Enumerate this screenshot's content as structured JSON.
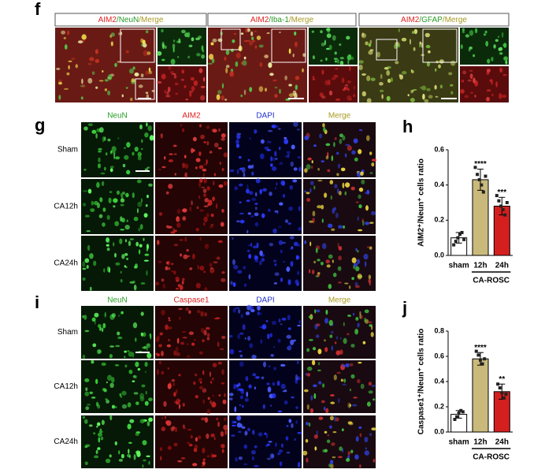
{
  "figure": {
    "f": {
      "label": "f",
      "panels": [
        {
          "parts": [
            "AIM2",
            "/NeuN",
            "/Merge"
          ]
        },
        {
          "parts": [
            "AIM2",
            "/Iba-1",
            "/Merge"
          ]
        },
        {
          "parts": [
            "AIM2",
            "/GFAP",
            "/Merge"
          ]
        }
      ]
    },
    "g": {
      "label": "g",
      "columns": [
        "NeuN",
        "AIM2",
        "DAPI",
        "Merge"
      ],
      "rows": [
        "Sham",
        "CA12h",
        "CA24h"
      ]
    },
    "i": {
      "label": "i",
      "columns": [
        "NeuN",
        "Caspase1",
        "DAPI",
        "Merge"
      ],
      "rows": [
        "Sham",
        "CA12h",
        "CA24h"
      ]
    }
  },
  "chart_data": [
    {
      "type": "bar",
      "panel_label": "h",
      "ylabel": "AIM2⁺/Neun⁺ cells ratio",
      "categories": [
        "sham",
        "12h",
        "24h"
      ],
      "values": [
        0.1,
        0.43,
        0.28
      ],
      "errors": [
        0.03,
        0.06,
        0.05
      ],
      "colors": [
        "#ffffff",
        "#c9ba7c",
        "#d41f1f"
      ],
      "significance": [
        null,
        "****",
        "***"
      ],
      "points": [
        [
          0.06,
          0.08,
          0.1,
          0.12,
          0.13,
          0.09
        ],
        [
          0.5,
          0.46,
          0.43,
          0.4,
          0.36,
          0.45
        ],
        [
          0.34,
          0.31,
          0.28,
          0.26,
          0.23,
          0.3
        ]
      ],
      "group_label": "CA-ROSC",
      "ylim": [
        0,
        0.6
      ],
      "yticks": [
        {
          "value": 0,
          "label": "0.0"
        },
        0.2,
        0.4,
        0.6
      ]
    },
    {
      "type": "bar",
      "panel_label": "j",
      "ylabel": "Caspase1⁺/Neun⁺ cells ratio",
      "categories": [
        "sham",
        "12h",
        "24h"
      ],
      "values": [
        0.14,
        0.58,
        0.32
      ],
      "errors": [
        0.03,
        0.05,
        0.06
      ],
      "colors": [
        "#ffffff",
        "#c9ba7c",
        "#d41f1f"
      ],
      "significance": [
        null,
        "****",
        "**"
      ],
      "points": [
        [
          0.1,
          0.12,
          0.15,
          0.17,
          0.16
        ],
        [
          0.64,
          0.61,
          0.57,
          0.54,
          0.58
        ],
        [
          0.38,
          0.35,
          0.31,
          0.27,
          0.3
        ]
      ],
      "group_label": "CA-ROSC",
      "ylim": [
        0,
        0.8
      ],
      "yticks": [
        {
          "value": 0,
          "label": "0.0"
        },
        0.2,
        0.4,
        0.6,
        0.8
      ]
    }
  ]
}
